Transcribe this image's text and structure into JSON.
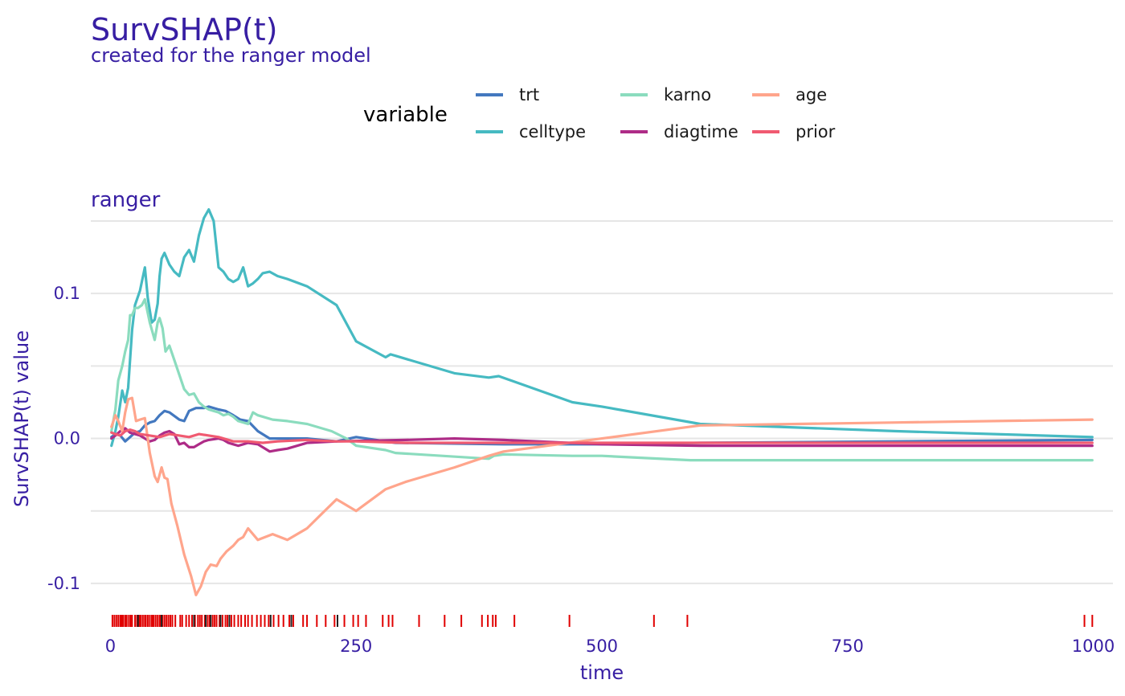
{
  "chart_data": {
    "type": "line",
    "title": "SurvSHAP(t)",
    "subtitle": "created for the ranger model",
    "panel_label": "ranger",
    "xlabel": "time",
    "ylabel": "SurvSHAP(t) value",
    "xlim": [
      -20,
      1020
    ],
    "ylim": [
      -0.12,
      0.15
    ],
    "xticks": [
      0,
      250,
      500,
      750,
      1000
    ],
    "xtick_labels": [
      "0",
      "250",
      "500",
      "750",
      "1000"
    ],
    "yticks": [
      -0.1,
      0.0,
      0.1
    ],
    "ytick_labels": [
      "-0.1",
      "0.0",
      "0.1"
    ],
    "ygrid_major": [
      -0.1,
      -0.05,
      0.0,
      0.05,
      0.1,
      0.15
    ],
    "legend": {
      "title": "variable",
      "position": "top"
    },
    "series": [
      {
        "name": "trt",
        "color": "#4378bf",
        "x": [
          1,
          5,
          10,
          15,
          20,
          25,
          30,
          35,
          40,
          45,
          50,
          55,
          60,
          70,
          75,
          80,
          87,
          95,
          100,
          110,
          117,
          125,
          132,
          140,
          150,
          162,
          175,
          200,
          230,
          250,
          290,
          400,
          500,
          600,
          800,
          999
        ],
        "y": [
          0.001,
          0.003,
          0.002,
          -0.002,
          0.001,
          0.004,
          0.005,
          0.009,
          0.011,
          0.012,
          0.016,
          0.019,
          0.018,
          0.013,
          0.012,
          0.019,
          0.021,
          0.021,
          0.022,
          0.02,
          0.019,
          0.016,
          0.013,
          0.012,
          0.005,
          0.0,
          0.0,
          0.0,
          -0.002,
          0.001,
          -0.003,
          -0.004,
          -0.004,
          -0.003,
          -0.002,
          -0.001
        ]
      },
      {
        "name": "celltype",
        "color": "#46bac2",
        "x": [
          1,
          5,
          8,
          12,
          15,
          18,
          22,
          25,
          30,
          35,
          38,
          42,
          45,
          48,
          50,
          52,
          55,
          60,
          65,
          70,
          75,
          80,
          85,
          90,
          95,
          100,
          105,
          110,
          115,
          120,
          125,
          130,
          135,
          140,
          145,
          150,
          155,
          162,
          170,
          180,
          200,
          230,
          250,
          280,
          285,
          290,
          350,
          385,
          395,
          470,
          500,
          600,
          800,
          999
        ],
        "y": [
          -0.005,
          0.005,
          0.015,
          0.033,
          0.025,
          0.035,
          0.075,
          0.092,
          0.102,
          0.118,
          0.097,
          0.08,
          0.082,
          0.093,
          0.112,
          0.124,
          0.128,
          0.12,
          0.115,
          0.112,
          0.125,
          0.13,
          0.122,
          0.14,
          0.152,
          0.158,
          0.15,
          0.118,
          0.115,
          0.11,
          0.108,
          0.11,
          0.118,
          0.105,
          0.107,
          0.11,
          0.114,
          0.115,
          0.112,
          0.11,
          0.105,
          0.092,
          0.067,
          0.056,
          0.058,
          0.057,
          0.045,
          0.042,
          0.043,
          0.025,
          0.022,
          0.01,
          0.005,
          0.001
        ]
      },
      {
        "name": "karno",
        "color": "#8bdcbe",
        "x": [
          1,
          5,
          8,
          12,
          15,
          18,
          20,
          22,
          25,
          28,
          32,
          35,
          40,
          45,
          48,
          50,
          53,
          56,
          60,
          65,
          70,
          75,
          80,
          85,
          90,
          95,
          100,
          105,
          110,
          115,
          120,
          125,
          130,
          140,
          145,
          150,
          165,
          180,
          200,
          225,
          240,
          250,
          280,
          290,
          385,
          390,
          400,
          470,
          500,
          590,
          800,
          999
        ],
        "y": [
          0.005,
          0.02,
          0.04,
          0.05,
          0.06,
          0.068,
          0.085,
          0.085,
          0.09,
          0.09,
          0.092,
          0.096,
          0.08,
          0.068,
          0.08,
          0.083,
          0.076,
          0.06,
          0.064,
          0.054,
          0.044,
          0.034,
          0.03,
          0.031,
          0.025,
          0.022,
          0.02,
          0.019,
          0.018,
          0.016,
          0.017,
          0.015,
          0.012,
          0.01,
          0.018,
          0.016,
          0.013,
          0.012,
          0.01,
          0.005,
          0.0,
          -0.005,
          -0.008,
          -0.01,
          -0.014,
          -0.012,
          -0.011,
          -0.012,
          -0.012,
          -0.015,
          -0.015,
          -0.015
        ]
      },
      {
        "name": "diagtime",
        "color": "#ae2c87",
        "x": [
          1,
          5,
          10,
          15,
          20,
          25,
          30,
          40,
          45,
          50,
          55,
          60,
          65,
          70,
          75,
          80,
          85,
          90,
          95,
          100,
          110,
          115,
          120,
          125,
          130,
          135,
          140,
          150,
          162,
          170,
          180,
          200,
          230,
          300,
          350,
          400,
          500,
          600,
          800,
          999
        ],
        "y": [
          0.0,
          0.002,
          0.005,
          0.007,
          0.004,
          0.003,
          0.002,
          -0.002,
          -0.001,
          0.002,
          0.004,
          0.005,
          0.003,
          -0.004,
          -0.003,
          -0.006,
          -0.006,
          -0.004,
          -0.002,
          -0.001,
          0.0,
          -0.001,
          -0.003,
          -0.004,
          -0.005,
          -0.004,
          -0.003,
          -0.004,
          -0.009,
          -0.008,
          -0.007,
          -0.003,
          -0.002,
          -0.001,
          0.0,
          -0.001,
          -0.004,
          -0.005,
          -0.005,
          -0.005
        ]
      },
      {
        "name": "age",
        "color": "#ffa58c",
        "x": [
          1,
          5,
          8,
          12,
          15,
          18,
          22,
          26,
          30,
          35,
          40,
          45,
          48,
          52,
          55,
          58,
          62,
          68,
          75,
          82,
          87,
          92,
          97,
          102,
          108,
          112,
          118,
          125,
          130,
          135,
          140,
          150,
          165,
          180,
          200,
          215,
          230,
          250,
          280,
          300,
          350,
          385,
          400,
          500,
          600,
          800,
          999
        ],
        "y": [
          0.008,
          0.016,
          0.012,
          0.005,
          0.018,
          0.027,
          0.028,
          0.012,
          0.013,
          0.014,
          -0.01,
          -0.026,
          -0.03,
          -0.02,
          -0.027,
          -0.028,
          -0.045,
          -0.06,
          -0.08,
          -0.095,
          -0.108,
          -0.102,
          -0.092,
          -0.087,
          -0.088,
          -0.083,
          -0.078,
          -0.074,
          -0.07,
          -0.068,
          -0.062,
          -0.07,
          -0.066,
          -0.07,
          -0.062,
          -0.052,
          -0.042,
          -0.05,
          -0.035,
          -0.03,
          -0.02,
          -0.012,
          -0.009,
          0.0,
          0.009,
          0.011,
          0.013
        ]
      },
      {
        "name": "prior",
        "color": "#f05a71",
        "x": [
          1,
          5,
          10,
          15,
          20,
          25,
          30,
          40,
          50,
          60,
          70,
          80,
          90,
          100,
          110,
          125,
          140,
          155,
          170,
          200,
          230,
          250,
          300,
          400,
          500,
          700,
          999
        ],
        "y": [
          0.004,
          0.003,
          0.002,
          0.005,
          0.006,
          0.005,
          0.003,
          0.002,
          0.001,
          0.003,
          0.002,
          0.001,
          0.003,
          0.002,
          0.001,
          -0.002,
          -0.002,
          -0.003,
          -0.002,
          -0.001,
          -0.002,
          -0.002,
          -0.003,
          -0.003,
          -0.003,
          -0.003,
          -0.003
        ]
      }
    ],
    "rug": {
      "red": [
        2,
        4,
        6,
        8,
        10,
        11,
        12,
        13,
        15,
        16,
        18,
        20,
        21,
        22,
        25,
        27,
        29,
        30,
        31,
        33,
        35,
        36,
        38,
        40,
        42,
        43,
        44,
        46,
        48,
        50,
        51,
        52,
        53,
        55,
        57,
        59,
        61,
        63,
        66,
        71,
        73,
        77,
        80,
        83,
        86,
        89,
        91,
        93,
        96,
        99,
        101,
        104,
        106,
        108,
        111,
        114,
        117,
        119,
        121,
        123,
        126,
        130,
        133,
        137,
        140,
        144,
        149,
        153,
        157,
        161,
        166,
        171,
        176,
        182,
        186,
        196,
        200,
        210,
        219,
        228,
        238,
        247,
        252,
        260,
        277,
        283,
        287,
        314,
        340,
        357,
        378,
        384,
        389,
        392,
        411,
        467,
        553,
        587,
        991,
        999
      ],
      "dark": [
        28,
        52,
        85,
        97,
        102,
        112,
        121,
        163,
        184,
        231
      ]
    }
  }
}
